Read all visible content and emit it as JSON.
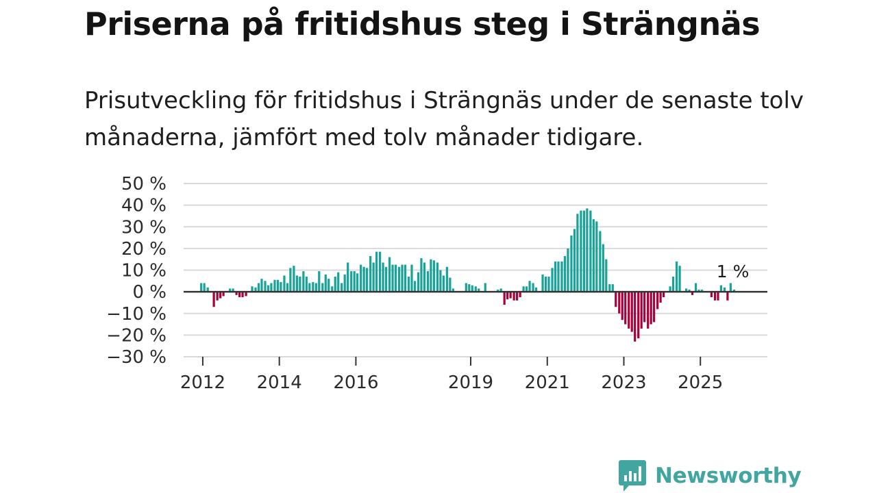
{
  "brand": {
    "name": "Newsworthy",
    "color": "#41a5a0"
  },
  "colors": {
    "positive": "#17a398",
    "negative": "#a8003a",
    "grid": "#d9d9d9",
    "zero": "#333333"
  },
  "chart_data": {
    "type": "bar",
    "title": "Priserna på fritidshus steg i Strängnäs",
    "subtitle": "Prisutveckling för fritidshus i Strängnäs under de senaste tolv månaderna, jämfört med tolv månader tidigare.",
    "xlabel": "",
    "ylabel": "",
    "unit": "%",
    "ylim": [
      -30,
      50
    ],
    "yticks": [
      50,
      40,
      30,
      20,
      10,
      0,
      -10,
      -20,
      -30
    ],
    "ytick_labels": [
      "50 %",
      "40 %",
      "30 %",
      "20 %",
      "10 %",
      "0 %",
      "−10 %",
      "−20 %",
      "−30 %"
    ],
    "xlim": [
      2011.5,
      2026.75
    ],
    "xticks": [
      {
        "label": "2012",
        "x": 2012
      },
      {
        "label": "2014",
        "x": 2014
      },
      {
        "label": "2016",
        "x": 2016
      },
      {
        "label": "2019",
        "x": 2019
      },
      {
        "label": "2021",
        "x": 2021
      },
      {
        "label": "2023",
        "x": 2023
      },
      {
        "label": "2025",
        "x": 2025
      }
    ],
    "series": [
      {
        "name": "Prisutveckling",
        "points": [
          {
            "x": 2011.96,
            "y": 4
          },
          {
            "x": 2012.04,
            "y": 4
          },
          {
            "x": 2012.13,
            "y": 2
          },
          {
            "x": 2012.21,
            "y": 0
          },
          {
            "x": 2012.29,
            "y": -7
          },
          {
            "x": 2012.38,
            "y": -4
          },
          {
            "x": 2012.46,
            "y": -3
          },
          {
            "x": 2012.54,
            "y": -2
          },
          {
            "x": 2012.63,
            "y": 0
          },
          {
            "x": 2012.71,
            "y": 1.5
          },
          {
            "x": 2012.79,
            "y": 1.5
          },
          {
            "x": 2012.88,
            "y": -1.5
          },
          {
            "x": 2012.96,
            "y": -2.5
          },
          {
            "x": 2013.04,
            "y": -2.5
          },
          {
            "x": 2013.13,
            "y": -2
          },
          {
            "x": 2013.21,
            "y": 0
          },
          {
            "x": 2013.29,
            "y": 2.5
          },
          {
            "x": 2013.38,
            "y": 2
          },
          {
            "x": 2013.46,
            "y": 4
          },
          {
            "x": 2013.54,
            "y": 6
          },
          {
            "x": 2013.63,
            "y": 5
          },
          {
            "x": 2013.71,
            "y": 3
          },
          {
            "x": 2013.79,
            "y": 4
          },
          {
            "x": 2013.88,
            "y": 5.5
          },
          {
            "x": 2013.96,
            "y": 5.5
          },
          {
            "x": 2014.04,
            "y": 4.5
          },
          {
            "x": 2014.13,
            "y": 7.5
          },
          {
            "x": 2014.21,
            "y": 4
          },
          {
            "x": 2014.29,
            "y": 11
          },
          {
            "x": 2014.38,
            "y": 12
          },
          {
            "x": 2014.46,
            "y": 7.5
          },
          {
            "x": 2014.54,
            "y": 7
          },
          {
            "x": 2014.63,
            "y": 9.5
          },
          {
            "x": 2014.71,
            "y": 7
          },
          {
            "x": 2014.79,
            "y": 4
          },
          {
            "x": 2014.88,
            "y": 4.5
          },
          {
            "x": 2014.96,
            "y": 4
          },
          {
            "x": 2015.04,
            "y": 9.5
          },
          {
            "x": 2015.13,
            "y": 4
          },
          {
            "x": 2015.21,
            "y": 8
          },
          {
            "x": 2015.29,
            "y": 6
          },
          {
            "x": 2015.38,
            "y": 2.5
          },
          {
            "x": 2015.46,
            "y": 7
          },
          {
            "x": 2015.54,
            "y": 9
          },
          {
            "x": 2015.63,
            "y": 4
          },
          {
            "x": 2015.71,
            "y": 8
          },
          {
            "x": 2015.79,
            "y": 13.5
          },
          {
            "x": 2015.88,
            "y": 9.5
          },
          {
            "x": 2015.96,
            "y": 9.5
          },
          {
            "x": 2016.04,
            "y": 8.5
          },
          {
            "x": 2016.13,
            "y": 12.5
          },
          {
            "x": 2016.21,
            "y": 11.5
          },
          {
            "x": 2016.29,
            "y": 11
          },
          {
            "x": 2016.38,
            "y": 16.5
          },
          {
            "x": 2016.46,
            "y": 13.5
          },
          {
            "x": 2016.54,
            "y": 18.5
          },
          {
            "x": 2016.63,
            "y": 18.5
          },
          {
            "x": 2016.71,
            "y": 13.5
          },
          {
            "x": 2016.79,
            "y": 11.5
          },
          {
            "x": 2016.88,
            "y": 16
          },
          {
            "x": 2016.96,
            "y": 12.5
          },
          {
            "x": 2017.04,
            "y": 12.5
          },
          {
            "x": 2017.13,
            "y": 11.5
          },
          {
            "x": 2017.21,
            "y": 12.5
          },
          {
            "x": 2017.29,
            "y": 12.5
          },
          {
            "x": 2017.38,
            "y": 7
          },
          {
            "x": 2017.46,
            "y": 12.5
          },
          {
            "x": 2017.54,
            "y": 5
          },
          {
            "x": 2017.63,
            "y": 9
          },
          {
            "x": 2017.71,
            "y": 15.5
          },
          {
            "x": 2017.79,
            "y": 13.5
          },
          {
            "x": 2017.88,
            "y": 9.5
          },
          {
            "x": 2017.96,
            "y": 15
          },
          {
            "x": 2018.04,
            "y": 14.5
          },
          {
            "x": 2018.13,
            "y": 13.5
          },
          {
            "x": 2018.21,
            "y": 10
          },
          {
            "x": 2018.29,
            "y": 7.5
          },
          {
            "x": 2018.38,
            "y": 11.5
          },
          {
            "x": 2018.46,
            "y": 6.5
          },
          {
            "x": 2018.54,
            "y": 1.5
          },
          {
            "x": 2018.63,
            "y": 0
          },
          {
            "x": 2018.71,
            "y": 0
          },
          {
            "x": 2018.79,
            "y": 0
          },
          {
            "x": 2018.88,
            "y": 4
          },
          {
            "x": 2018.96,
            "y": 3.5
          },
          {
            "x": 2019.04,
            "y": 3
          },
          {
            "x": 2019.13,
            "y": 2.5
          },
          {
            "x": 2019.21,
            "y": 1.5
          },
          {
            "x": 2019.29,
            "y": 0
          },
          {
            "x": 2019.38,
            "y": 4
          },
          {
            "x": 2019.46,
            "y": 0
          },
          {
            "x": 2019.54,
            "y": 0
          },
          {
            "x": 2019.63,
            "y": 0
          },
          {
            "x": 2019.71,
            "y": 1
          },
          {
            "x": 2019.79,
            "y": 1.5
          },
          {
            "x": 2019.88,
            "y": -6
          },
          {
            "x": 2019.96,
            "y": -3.5
          },
          {
            "x": 2020.04,
            "y": -3
          },
          {
            "x": 2020.13,
            "y": -4
          },
          {
            "x": 2020.21,
            "y": -4
          },
          {
            "x": 2020.29,
            "y": -2.5
          },
          {
            "x": 2020.38,
            "y": 2.5
          },
          {
            "x": 2020.46,
            "y": 2.5
          },
          {
            "x": 2020.54,
            "y": 5
          },
          {
            "x": 2020.63,
            "y": 4
          },
          {
            "x": 2020.71,
            "y": 2
          },
          {
            "x": 2020.79,
            "y": 0
          },
          {
            "x": 2020.88,
            "y": 8
          },
          {
            "x": 2020.96,
            "y": 7
          },
          {
            "x": 2021.04,
            "y": 7
          },
          {
            "x": 2021.13,
            "y": 11
          },
          {
            "x": 2021.21,
            "y": 14
          },
          {
            "x": 2021.29,
            "y": 14
          },
          {
            "x": 2021.38,
            "y": 14
          },
          {
            "x": 2021.46,
            "y": 16.5
          },
          {
            "x": 2021.54,
            "y": 20
          },
          {
            "x": 2021.63,
            "y": 26
          },
          {
            "x": 2021.71,
            "y": 29
          },
          {
            "x": 2021.79,
            "y": 36
          },
          {
            "x": 2021.88,
            "y": 37.5
          },
          {
            "x": 2021.96,
            "y": 37.5
          },
          {
            "x": 2022.04,
            "y": 38.5
          },
          {
            "x": 2022.13,
            "y": 37.5
          },
          {
            "x": 2022.21,
            "y": 33.5
          },
          {
            "x": 2022.29,
            "y": 32.5
          },
          {
            "x": 2022.38,
            "y": 28
          },
          {
            "x": 2022.46,
            "y": 22
          },
          {
            "x": 2022.54,
            "y": 15
          },
          {
            "x": 2022.63,
            "y": 3.5
          },
          {
            "x": 2022.71,
            "y": 3.5
          },
          {
            "x": 2022.79,
            "y": -7
          },
          {
            "x": 2022.88,
            "y": -10
          },
          {
            "x": 2022.96,
            "y": -13
          },
          {
            "x": 2023.04,
            "y": -15
          },
          {
            "x": 2023.13,
            "y": -17
          },
          {
            "x": 2023.21,
            "y": -18.5
          },
          {
            "x": 2023.29,
            "y": -23
          },
          {
            "x": 2023.38,
            "y": -21.5
          },
          {
            "x": 2023.46,
            "y": -17
          },
          {
            "x": 2023.54,
            "y": -14
          },
          {
            "x": 2023.63,
            "y": -17
          },
          {
            "x": 2023.71,
            "y": -15
          },
          {
            "x": 2023.79,
            "y": -14
          },
          {
            "x": 2023.88,
            "y": -8
          },
          {
            "x": 2023.96,
            "y": -5
          },
          {
            "x": 2024.04,
            "y": -2.5
          },
          {
            "x": 2024.13,
            "y": 0
          },
          {
            "x": 2024.21,
            "y": 2.5
          },
          {
            "x": 2024.29,
            "y": 7
          },
          {
            "x": 2024.38,
            "y": 14
          },
          {
            "x": 2024.46,
            "y": 12
          },
          {
            "x": 2024.54,
            "y": 0
          },
          {
            "x": 2024.63,
            "y": 1.5
          },
          {
            "x": 2024.71,
            "y": 1
          },
          {
            "x": 2024.79,
            "y": -1.5
          },
          {
            "x": 2024.88,
            "y": 4
          },
          {
            "x": 2024.96,
            "y": 1
          },
          {
            "x": 2025.04,
            "y": 1
          },
          {
            "x": 2025.13,
            "y": 0
          },
          {
            "x": 2025.21,
            "y": 0
          },
          {
            "x": 2025.29,
            "y": -2.5
          },
          {
            "x": 2025.38,
            "y": -4
          },
          {
            "x": 2025.46,
            "y": -4
          },
          {
            "x": 2025.54,
            "y": 3
          },
          {
            "x": 2025.63,
            "y": 2
          },
          {
            "x": 2025.71,
            "y": -4
          },
          {
            "x": 2025.79,
            "y": 4
          },
          {
            "x": 2025.88,
            "y": 1
          }
        ]
      }
    ],
    "annotations": [
      {
        "text": "1 %",
        "x": 2025.88,
        "y": 1
      }
    ]
  }
}
